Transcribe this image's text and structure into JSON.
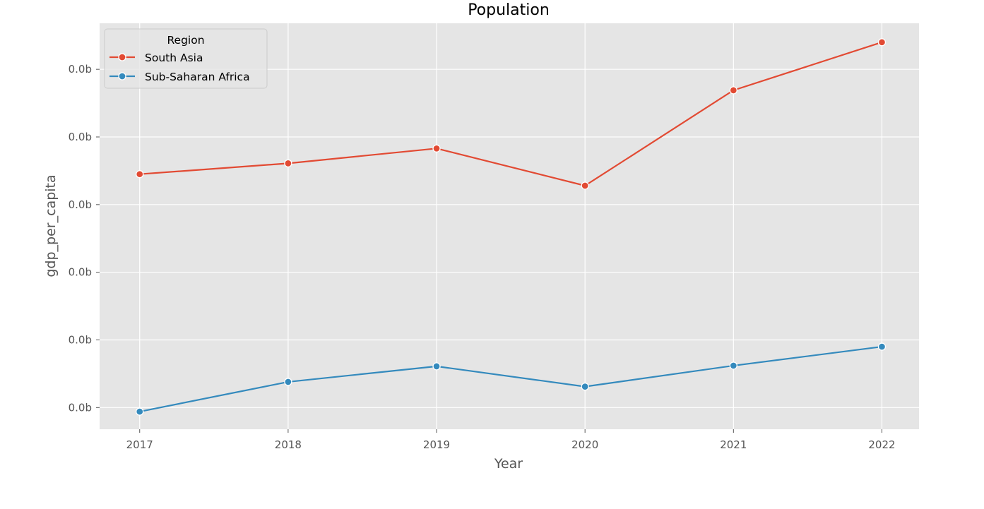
{
  "chart_data": {
    "type": "line",
    "title": "Population",
    "xlabel": "Year",
    "ylabel": "gdp_per_capita",
    "x": [
      2017,
      2018,
      2019,
      2020,
      2021,
      2022
    ],
    "x_tick_labels": [
      "2017",
      "2018",
      "2019",
      "2020",
      "2021",
      "2022"
    ],
    "y_tick_values": [
      0,
      1,
      2,
      3,
      4,
      5
    ],
    "y_tick_labels": [
      "0.0b",
      "0.0b",
      "0.0b",
      "0.0b",
      "0.0b",
      "0.0b"
    ],
    "ylim": [
      -0.32,
      5.68
    ],
    "grid": true,
    "legend": {
      "title": "Region",
      "placement": "top-left"
    },
    "series": [
      {
        "name": "South Asia",
        "color": "#e24a33",
        "values": [
          3.45,
          3.61,
          3.83,
          3.28,
          4.69,
          5.4
        ]
      },
      {
        "name": "Sub-Saharan Africa",
        "color": "#348abd",
        "values": [
          -0.06,
          0.38,
          0.61,
          0.31,
          0.62,
          0.9
        ]
      }
    ]
  },
  "style": {
    "plot_background": "#e5e5e5",
    "grid_color": "#ffffff"
  }
}
